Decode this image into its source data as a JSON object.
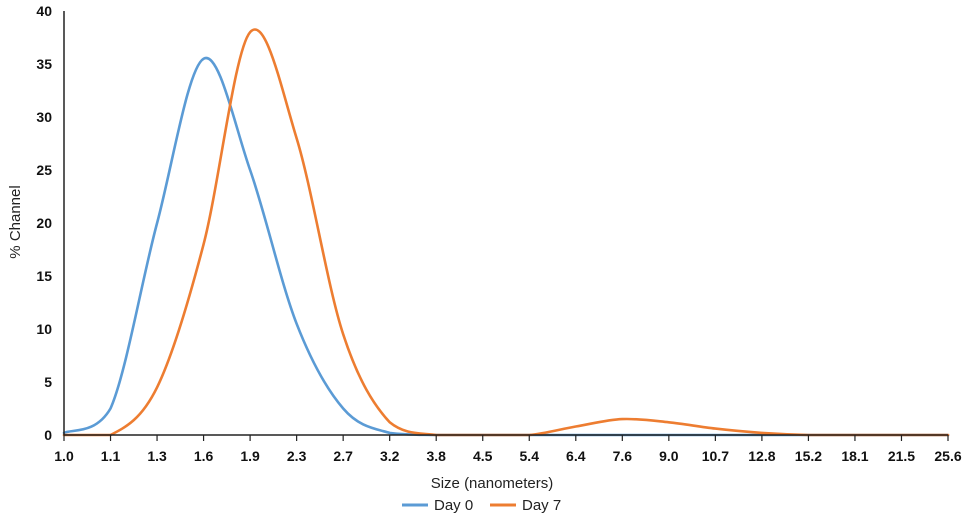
{
  "chart_data": {
    "type": "line",
    "xlabel": "Size (nanometers)",
    "ylabel": "% Channel",
    "ylim": [
      0,
      40
    ],
    "yticks": [
      "0",
      "5",
      "10",
      "15",
      "20",
      "25",
      "30",
      "35",
      "40"
    ],
    "x": [
      "1.0",
      "1.1",
      "1.3",
      "1.6",
      "1.9",
      "2.3",
      "2.7",
      "3.2",
      "3.8",
      "4.5",
      "5.4",
      "6.4",
      "7.6",
      "9.0",
      "10.7",
      "12.8",
      "15.2",
      "18.1",
      "21.5",
      "25.6"
    ],
    "grid": false,
    "legend_position": "bottom",
    "series": [
      {
        "name": "Day 0",
        "color": "#5B9BD5",
        "values": [
          0.2,
          2.5,
          20,
          35.5,
          25,
          10.5,
          2.5,
          0.2,
          0,
          0,
          0,
          0,
          0,
          0,
          0,
          0,
          0,
          0,
          0,
          0
        ]
      },
      {
        "name": "Day 7",
        "color": "#ED7D31",
        "values": [
          0,
          0,
          4.5,
          18,
          38,
          28,
          9.5,
          1.2,
          0,
          0,
          0,
          0.8,
          1.5,
          1.2,
          0.6,
          0.2,
          0,
          0,
          0,
          0
        ]
      }
    ]
  }
}
